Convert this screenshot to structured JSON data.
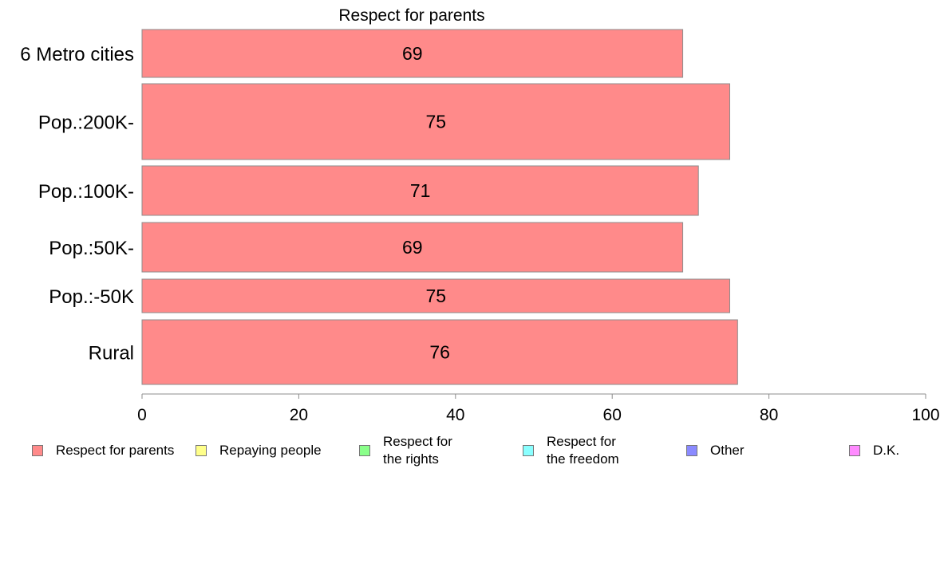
{
  "chart_data": {
    "type": "bar",
    "orientation": "horizontal",
    "title": "Respect for parents",
    "categories": [
      "6 Metro cities",
      "Pop.:200K-",
      "Pop.:100K-",
      "Pop.:50K-",
      "Pop.:-50K",
      "Rural"
    ],
    "series": [
      {
        "name": "Respect for parents",
        "values": [
          69,
          75,
          71,
          69,
          75,
          76
        ],
        "color": "#ff8a8a"
      }
    ],
    "data_labels": [
      "69",
      "75",
      "71",
      "69",
      "75",
      "76"
    ],
    "xlim": [
      0,
      100
    ],
    "xticks": [
      "0",
      "20",
      "40",
      "60",
      "80",
      "100"
    ],
    "grid": false,
    "legend_position": "bottom"
  },
  "legend": [
    {
      "label": "Respect for parents",
      "color": "#ff8a8a"
    },
    {
      "label": "Repaying people",
      "color": "#ffff8a"
    },
    {
      "label": "Respect for\nthe rights",
      "color": "#8aff8a"
    },
    {
      "label": "Respect for\nthe freedom",
      "color": "#8affff"
    },
    {
      "label": "Other",
      "color": "#8a8aff"
    },
    {
      "label": "D.K.",
      "color": "#ff8aff"
    }
  ]
}
